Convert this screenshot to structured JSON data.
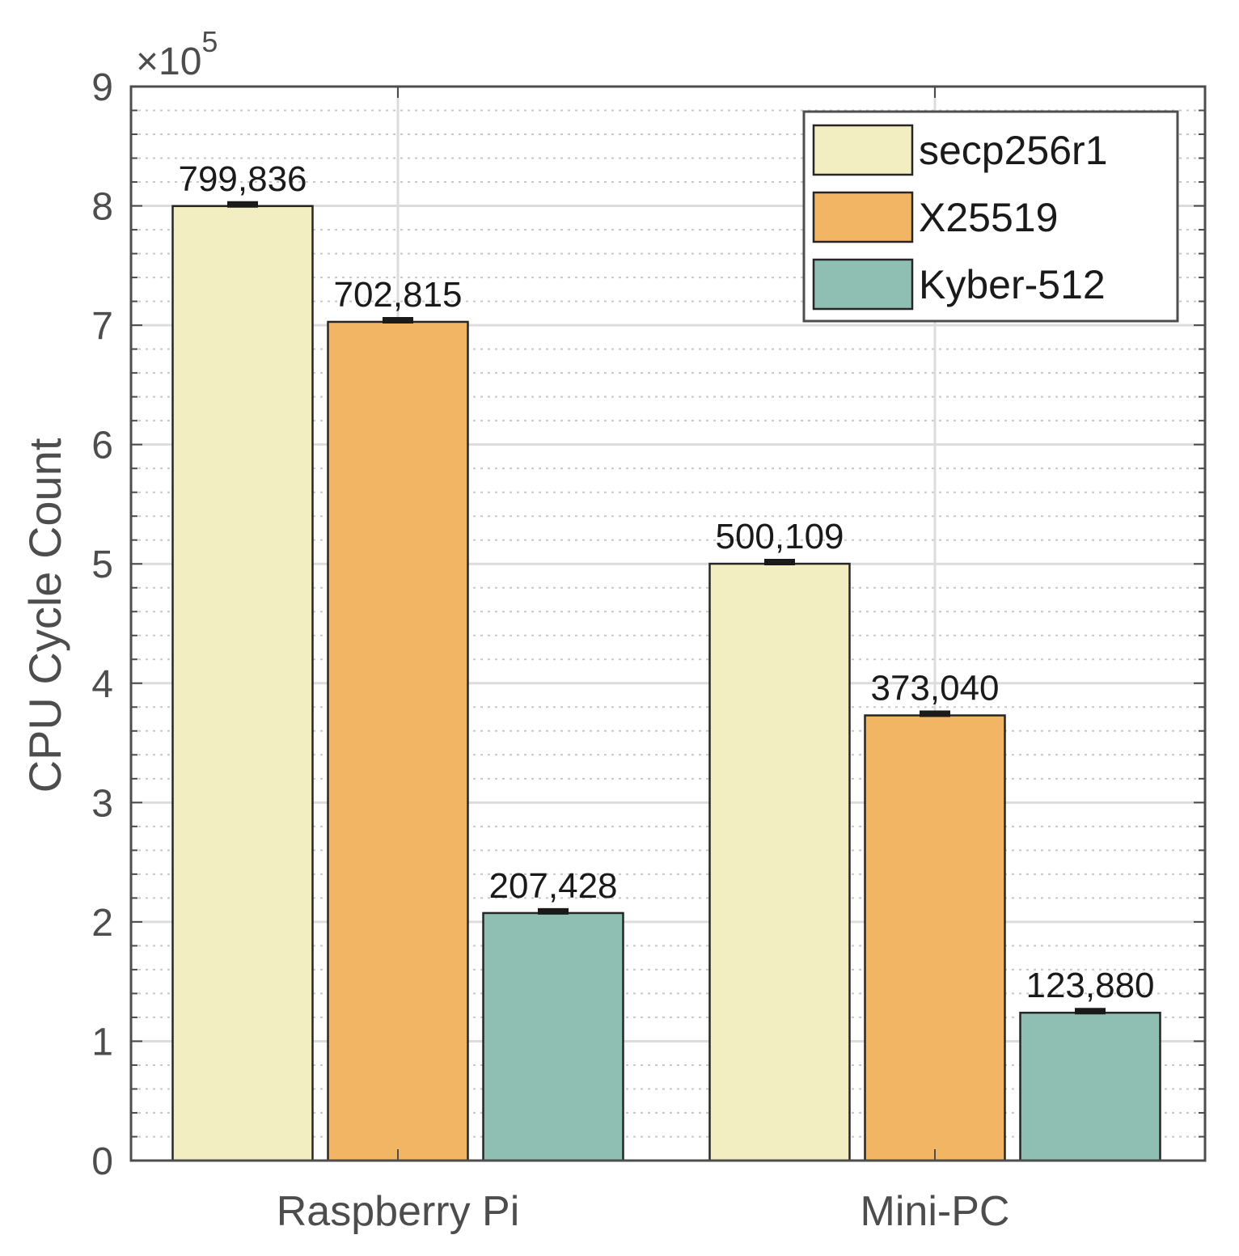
{
  "chart_data": {
    "type": "bar",
    "title": "",
    "xlabel": "",
    "ylabel": "CPU Cycle Count",
    "y_exponent_prefix": "×10",
    "y_exponent_power": "5",
    "y_scale": 100000,
    "ylim": [
      0,
      900000
    ],
    "yticks": [
      0,
      1,
      2,
      3,
      4,
      5,
      6,
      7,
      8,
      9
    ],
    "grid": true,
    "legend_position": "top-right",
    "categories": [
      "Raspberry Pi",
      "Mini-PC"
    ],
    "series": [
      {
        "name": "secp256r1",
        "color": "#f2eec1",
        "values": [
          799836,
          500109
        ],
        "labels": [
          "799,836",
          "500,109"
        ]
      },
      {
        "name": "X25519",
        "color": "#f2b563",
        "values": [
          702815,
          373040
        ],
        "labels": [
          "702,815",
          "373,040"
        ]
      },
      {
        "name": "Kyber-512",
        "color": "#8fbfb2",
        "values": [
          207428,
          123880
        ],
        "labels": [
          "207,428",
          "123,880"
        ]
      }
    ]
  }
}
